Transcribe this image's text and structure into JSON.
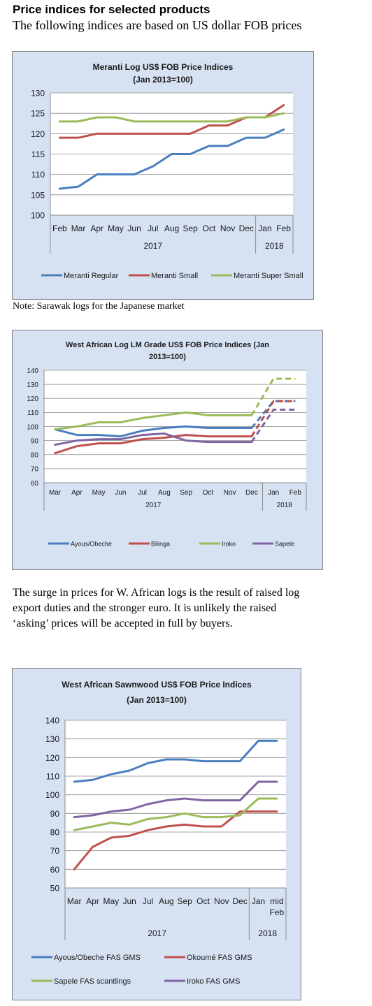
{
  "header": {
    "title": "Price indices for selected products",
    "subtitle": "The following indices are based on US dollar FOB prices"
  },
  "note1": "Note: Sarawak logs for the Japanese market",
  "paragraph": [
    "The surge in prices for W. African logs is the result of raised log",
    "export duties and the stronger euro. It is unlikely the raised",
    "‘asking’ prices will be accepted in full by buyers."
  ],
  "chart_data": [
    {
      "type": "line",
      "title": [
        "Meranti Log US$ FOB Price Indices",
        "(Jan 2013=100)"
      ],
      "categories": [
        "Feb",
        "Mar",
        "Apr",
        "May",
        "Jun",
        "Jul",
        "Aug",
        "Sep",
        "Oct",
        "Nov",
        "Dec",
        "Jan",
        "Feb"
      ],
      "year_groups": [
        {
          "label": "2017",
          "from": 0,
          "to": 10
        },
        {
          "label": "2018",
          "from": 11,
          "to": 12
        }
      ],
      "ylim": [
        100,
        130
      ],
      "yticks": [
        100,
        105,
        110,
        115,
        120,
        125,
        130
      ],
      "grid": true,
      "legend": "bottom",
      "series": [
        {
          "name": "Meranti Regular",
          "color": "#4a7ebf",
          "values": [
            106.5,
            107,
            110,
            110,
            110,
            112,
            115,
            115,
            117,
            117,
            119,
            119,
            121
          ]
        },
        {
          "name": "Meranti Small",
          "color": "#c0504d",
          "values": [
            119,
            119,
            120,
            120,
            120,
            120,
            120,
            120,
            122,
            122,
            124,
            124,
            127
          ]
        },
        {
          "name": "Meranti Super Small",
          "color": "#9bbb59",
          "values": [
            123,
            123,
            124,
            124,
            123,
            123,
            123,
            123,
            123,
            123,
            124,
            124,
            125
          ]
        }
      ]
    },
    {
      "type": "line",
      "title": [
        "West African Log LM Grade US$ FOB Price Indices (Jan",
        "2013=100)"
      ],
      "categories": [
        "Mar",
        "Apr",
        "May",
        "Jun",
        "Jul",
        "Aug",
        "Sep",
        "Oct",
        "Nov",
        "Dec",
        "Jan",
        "Feb"
      ],
      "year_groups": [
        {
          "label": "2017",
          "from": 0,
          "to": 9
        },
        {
          "label": "2018",
          "from": 10,
          "to": 11
        }
      ],
      "ylim": [
        60,
        140
      ],
      "yticks": [
        60,
        70,
        80,
        90,
        100,
        110,
        120,
        130,
        140
      ],
      "grid": true,
      "legend": "bottom",
      "dashed_from": 9,
      "series": [
        {
          "name": "Ayous/Obeche",
          "color": "#4a7ebf",
          "values": [
            98,
            94,
            94,
            93,
            97,
            99,
            100,
            99,
            99,
            99,
            118,
            118
          ]
        },
        {
          "name": "Bilinga",
          "color": "#c0504d",
          "values": [
            81,
            86,
            88,
            88,
            91,
            92,
            94,
            93,
            93,
            93,
            118,
            118
          ]
        },
        {
          "name": "Iroko",
          "color": "#9bbb59",
          "values": [
            98,
            100,
            103,
            103,
            106,
            108,
            110,
            108,
            108,
            108,
            134,
            134
          ]
        },
        {
          "name": "Sapele",
          "color": "#8064a2",
          "values": [
            87,
            90,
            91,
            91,
            94,
            95,
            90,
            89,
            89,
            89,
            112,
            112
          ]
        }
      ]
    },
    {
      "type": "line",
      "title": [
        "West African Sawnwood US$ FOB Price Indices",
        "(Jan 2013=100)"
      ],
      "categories": [
        "Mar",
        "Apr",
        "May",
        "Jun",
        "Jul",
        "Aug",
        "Sep",
        "Oct",
        "Nov",
        "Dec",
        "Jan",
        "mid Feb"
      ],
      "year_groups": [
        {
          "label": "2017",
          "from": 0,
          "to": 9
        },
        {
          "label": "2018",
          "from": 10,
          "to": 11
        }
      ],
      "ylim": [
        50,
        140
      ],
      "yticks": [
        50,
        60,
        70,
        80,
        90,
        100,
        110,
        120,
        130,
        140
      ],
      "grid": true,
      "legend": "bottom",
      "series": [
        {
          "name": "Ayous/Obeche FAS GMS",
          "color": "#4a7ebf",
          "values": [
            107,
            108,
            111,
            113,
            117,
            119,
            119,
            118,
            118,
            118,
            129,
            129
          ]
        },
        {
          "name": "Okoumé FAS GMS",
          "color": "#c0504d",
          "values": [
            60,
            72,
            77,
            78,
            81,
            83,
            84,
            83,
            83,
            91,
            91,
            91
          ]
        },
        {
          "name": "Sapele FAS scantlings",
          "color": "#9bbb59",
          "values": [
            81,
            83,
            85,
            84,
            87,
            88,
            90,
            88,
            88,
            89,
            98,
            98
          ]
        },
        {
          "name": "Iroko FAS GMS",
          "color": "#8064a2",
          "values": [
            88,
            89,
            91,
            92,
            95,
            97,
            98,
            97,
            97,
            97,
            107,
            107
          ]
        }
      ]
    }
  ]
}
